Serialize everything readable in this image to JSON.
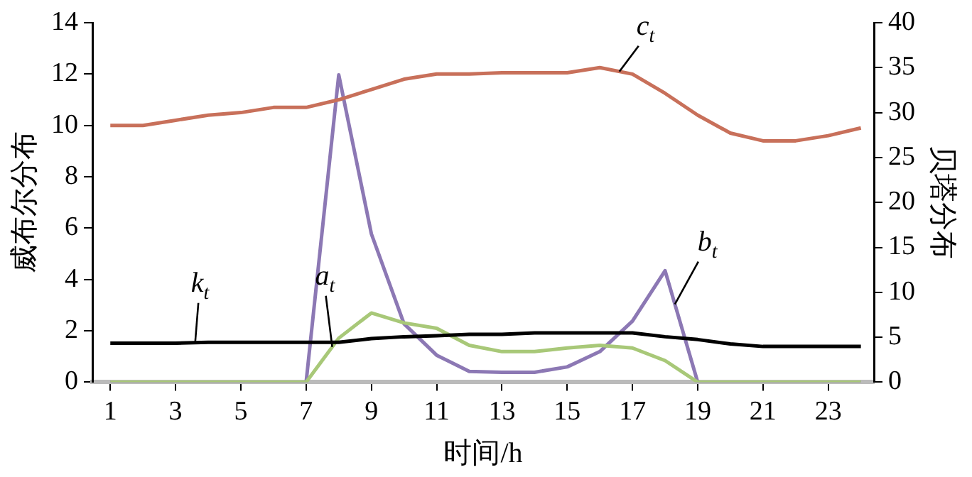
{
  "chart_data": {
    "type": "line",
    "xlabel": "时间/h",
    "ylabel": "威布尔分布",
    "y2label": "贝塔分布",
    "x": [
      1,
      2,
      3,
      4,
      5,
      6,
      7,
      8,
      9,
      10,
      11,
      12,
      13,
      14,
      15,
      16,
      17,
      18,
      19,
      20,
      21,
      22,
      23,
      24
    ],
    "xlim": [
      0.45,
      24.4
    ],
    "xticks": [
      1,
      3,
      5,
      7,
      9,
      11,
      13,
      15,
      17,
      19,
      21,
      23
    ],
    "ylim": [
      0,
      14
    ],
    "yticks": [
      0,
      2,
      4,
      6,
      8,
      10,
      12,
      14
    ],
    "y2lim": [
      0,
      40
    ],
    "y2ticks": [
      0,
      5,
      10,
      15,
      20,
      25,
      30,
      35,
      40
    ],
    "grid": false,
    "legend": false,
    "marker": "none",
    "line_style": "solid",
    "series": [
      {
        "name": "c$_{t}$",
        "color": "#c8705a",
        "values": [
          10.0,
          10.0,
          10.2,
          10.4,
          10.5,
          10.7,
          10.7,
          11.0,
          11.4,
          11.8,
          12.0,
          12.0,
          12.05,
          12.05,
          12.05,
          12.25,
          12.0,
          11.25,
          10.4,
          9.7,
          9.4,
          9.4,
          9.6,
          9.9
        ]
      },
      {
        "name": "k$_{t}$",
        "color": "#000000",
        "values": [
          1.52,
          1.52,
          1.52,
          1.55,
          1.55,
          1.55,
          1.55,
          1.55,
          1.7,
          1.77,
          1.81,
          1.86,
          1.86,
          1.92,
          1.92,
          1.92,
          1.92,
          1.77,
          1.66,
          1.49,
          1.39,
          1.39,
          1.39,
          1.39
        ]
      },
      {
        "name": "a$_{t}$",
        "color": "#a8c878",
        "axis": "y2",
        "values": [
          0,
          0,
          0,
          0,
          0,
          0,
          0,
          4.9,
          7.7,
          6.6,
          6.0,
          4.1,
          3.4,
          3.4,
          3.8,
          4.1,
          3.8,
          2.4,
          0,
          0,
          0,
          0,
          0,
          0
        ]
      },
      {
        "name": "b$_{t}$",
        "color": "#8c78b4",
        "axis": "y2",
        "values": [
          0,
          0,
          0,
          0,
          0,
          0,
          0,
          34.2,
          16.5,
          6.5,
          3.0,
          1.2,
          1.1,
          1.1,
          1.7,
          3.4,
          6.8,
          12.4,
          0,
          0,
          0,
          0,
          0,
          0
        ]
      }
    ]
  }
}
